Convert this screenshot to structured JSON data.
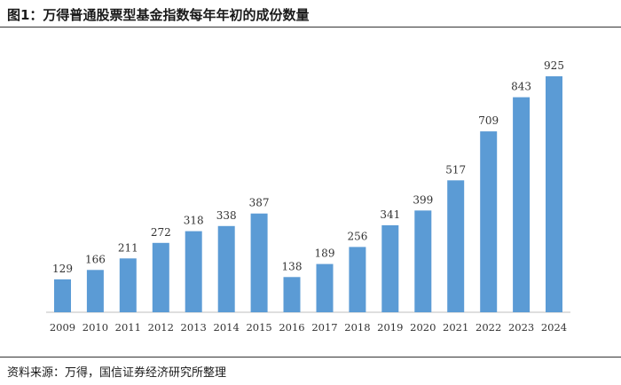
{
  "figure": {
    "title": "图1：万得普通股票型基金指数每年年初的成份数量",
    "source": "资料来源：万得，国信证券经济研究所整理"
  },
  "colors": {
    "bar": "#5b9bd5",
    "axis": "#bfbfbf"
  },
  "chart_data": {
    "type": "bar",
    "categories": [
      "2009",
      "2010",
      "2011",
      "2012",
      "2013",
      "2014",
      "2015",
      "2016",
      "2017",
      "2018",
      "2019",
      "2020",
      "2021",
      "2022",
      "2023",
      "2024"
    ],
    "values": [
      129,
      166,
      211,
      272,
      318,
      338,
      387,
      138,
      189,
      256,
      341,
      399,
      517,
      709,
      843,
      925
    ],
    "title": "",
    "xlabel": "",
    "ylabel": "",
    "ylim": [
      0,
      1000
    ],
    "grid": false,
    "legend": "none"
  }
}
